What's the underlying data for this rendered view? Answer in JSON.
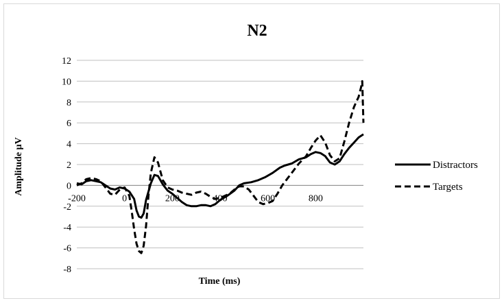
{
  "chart_data": {
    "type": "line",
    "title": "N2",
    "xlabel": "Time (ms)",
    "ylabel": "Amplitude µV",
    "xlim": [
      -200,
      1000
    ],
    "ylim": [
      -8,
      12
    ],
    "x_ticks": [
      -200,
      0,
      200,
      400,
      600,
      800
    ],
    "y_ticks": [
      12,
      10,
      8,
      6,
      4,
      2,
      0,
      -2,
      -4,
      -6,
      -8
    ],
    "grid": "horizontal",
    "legend_position": "right",
    "series": [
      {
        "name": "Distractors",
        "line_style": "solid",
        "color": "#000000",
        "points": [
          [
            -200,
            0.2
          ],
          [
            -180,
            0.1
          ],
          [
            -160,
            0.4
          ],
          [
            -140,
            0.5
          ],
          [
            -120,
            0.4
          ],
          [
            -100,
            0.3
          ],
          [
            -80,
            0.0
          ],
          [
            -60,
            -0.3
          ],
          [
            -40,
            -0.4
          ],
          [
            -20,
            -0.2
          ],
          [
            0,
            -0.3
          ],
          [
            20,
            -0.6
          ],
          [
            40,
            -1.3
          ],
          [
            50,
            -2.4
          ],
          [
            60,
            -3.0
          ],
          [
            70,
            -3.1
          ],
          [
            80,
            -2.7
          ],
          [
            90,
            -1.4
          ],
          [
            110,
            0.2
          ],
          [
            125,
            1.0
          ],
          [
            140,
            0.9
          ],
          [
            160,
            0.1
          ],
          [
            180,
            -0.5
          ],
          [
            200,
            -0.8
          ],
          [
            220,
            -1.2
          ],
          [
            240,
            -1.6
          ],
          [
            260,
            -1.9
          ],
          [
            280,
            -2.0
          ],
          [
            300,
            -2.0
          ],
          [
            320,
            -1.9
          ],
          [
            340,
            -1.9
          ],
          [
            360,
            -2.0
          ],
          [
            380,
            -1.8
          ],
          [
            400,
            -1.4
          ],
          [
            430,
            -1.0
          ],
          [
            460,
            -0.5
          ],
          [
            480,
            0.0
          ],
          [
            500,
            0.2
          ],
          [
            530,
            0.3
          ],
          [
            560,
            0.5
          ],
          [
            590,
            0.8
          ],
          [
            620,
            1.2
          ],
          [
            650,
            1.7
          ],
          [
            670,
            1.9
          ],
          [
            700,
            2.1
          ],
          [
            730,
            2.5
          ],
          [
            760,
            2.7
          ],
          [
            780,
            3.0
          ],
          [
            800,
            3.2
          ],
          [
            820,
            3.1
          ],
          [
            840,
            2.8
          ],
          [
            860,
            2.2
          ],
          [
            880,
            2.0
          ],
          [
            900,
            2.3
          ],
          [
            920,
            3.0
          ],
          [
            940,
            3.6
          ],
          [
            960,
            4.1
          ],
          [
            980,
            4.6
          ],
          [
            1000,
            4.9
          ]
        ]
      },
      {
        "name": "Targets",
        "line_style": "dashed",
        "color": "#000000",
        "points": [
          [
            -200,
            0.0
          ],
          [
            -180,
            0.2
          ],
          [
            -160,
            0.6
          ],
          [
            -140,
            0.7
          ],
          [
            -120,
            0.6
          ],
          [
            -100,
            0.4
          ],
          [
            -80,
            -0.2
          ],
          [
            -60,
            -0.8
          ],
          [
            -40,
            -0.9
          ],
          [
            -20,
            -0.4
          ],
          [
            0,
            -0.2
          ],
          [
            20,
            -1.0
          ],
          [
            30,
            -2.5
          ],
          [
            40,
            -4.2
          ],
          [
            50,
            -5.6
          ],
          [
            60,
            -6.3
          ],
          [
            70,
            -6.5
          ],
          [
            80,
            -5.8
          ],
          [
            90,
            -3.9
          ],
          [
            100,
            -1.0
          ],
          [
            110,
            1.2
          ],
          [
            125,
            2.7
          ],
          [
            140,
            2.2
          ],
          [
            160,
            0.5
          ],
          [
            180,
            -0.2
          ],
          [
            200,
            -0.4
          ],
          [
            220,
            -0.5
          ],
          [
            240,
            -0.7
          ],
          [
            260,
            -0.8
          ],
          [
            280,
            -0.9
          ],
          [
            300,
            -0.7
          ],
          [
            320,
            -0.6
          ],
          [
            340,
            -0.8
          ],
          [
            360,
            -1.1
          ],
          [
            380,
            -1.3
          ],
          [
            400,
            -1.2
          ],
          [
            420,
            -1.0
          ],
          [
            440,
            -0.8
          ],
          [
            460,
            -0.4
          ],
          [
            480,
            -0.1
          ],
          [
            500,
            -0.1
          ],
          [
            520,
            -0.4
          ],
          [
            540,
            -1.0
          ],
          [
            560,
            -1.6
          ],
          [
            580,
            -1.8
          ],
          [
            600,
            -1.7
          ],
          [
            620,
            -1.5
          ],
          [
            640,
            -0.8
          ],
          [
            660,
            0.0
          ],
          [
            680,
            0.6
          ],
          [
            700,
            1.2
          ],
          [
            730,
            2.1
          ],
          [
            760,
            2.8
          ],
          [
            780,
            3.6
          ],
          [
            800,
            4.3
          ],
          [
            820,
            4.8
          ],
          [
            840,
            4.1
          ],
          [
            860,
            2.9
          ],
          [
            880,
            2.3
          ],
          [
            900,
            2.6
          ],
          [
            920,
            4.2
          ],
          [
            940,
            6.0
          ],
          [
            960,
            7.5
          ],
          [
            980,
            8.5
          ],
          [
            990,
            9.4
          ],
          [
            995,
            10.0
          ],
          [
            1000,
            6.0
          ]
        ]
      }
    ]
  }
}
